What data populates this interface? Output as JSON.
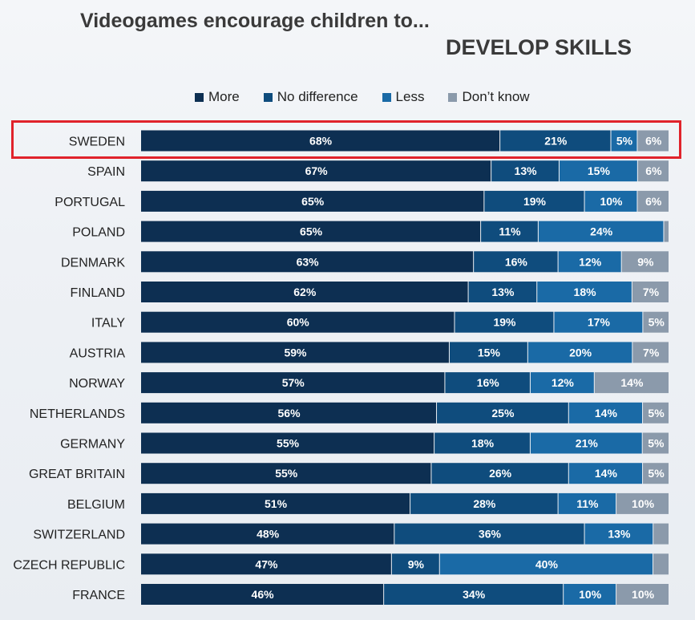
{
  "chart_data": {
    "type": "bar",
    "orientation": "horizontal",
    "stacked": true,
    "title": "Videogames encourage children to...",
    "subtitle": "DEVELOP SKILLS",
    "legend_position": "top",
    "grid": false,
    "categories": [
      "SWEDEN",
      "SPAIN",
      "PORTUGAL",
      "POLAND",
      "DENMARK",
      "FINLAND",
      "ITALY",
      "AUSTRIA",
      "NORWAY",
      "NETHERLANDS",
      "GERMANY",
      "GREAT BRITAIN",
      "BELGIUM",
      "SWITZERLAND",
      "CZECH REPUBLIC",
      "FRANCE"
    ],
    "series": [
      {
        "name": "More",
        "color": "#0d2f52",
        "values": [
          68,
          67,
          65,
          65,
          63,
          62,
          60,
          59,
          57,
          56,
          55,
          55,
          51,
          48,
          47,
          46
        ]
      },
      {
        "name": "No difference",
        "color": "#0f4c7d",
        "values": [
          21,
          13,
          19,
          11,
          16,
          13,
          19,
          15,
          16,
          25,
          18,
          26,
          28,
          36,
          9,
          34
        ]
      },
      {
        "name": "Less",
        "color": "#1a6aa6",
        "values": [
          5,
          15,
          10,
          24,
          12,
          18,
          17,
          20,
          12,
          14,
          21,
          14,
          11,
          13,
          40,
          10
        ]
      },
      {
        "name": "Don’t know",
        "color": "#8b9aab",
        "values": [
          6,
          6,
          6,
          1,
          9,
          7,
          5,
          7,
          14,
          5,
          5,
          5,
          10,
          3,
          3,
          10
        ]
      }
    ],
    "labels": [
      [
        "68%",
        "21%",
        "5%",
        "6%"
      ],
      [
        "67%",
        "13%",
        "15%",
        "6%"
      ],
      [
        "65%",
        "19%",
        "10%",
        "6%"
      ],
      [
        "65%",
        "11%",
        "24%",
        ""
      ],
      [
        "63%",
        "16%",
        "12%",
        "9%"
      ],
      [
        "62%",
        "13%",
        "18%",
        "7%"
      ],
      [
        "60%",
        "19%",
        "17%",
        "5%"
      ],
      [
        "59%",
        "15%",
        "20%",
        "7%"
      ],
      [
        "57%",
        "16%",
        "12%",
        "14%"
      ],
      [
        "56%",
        "25%",
        "14%",
        "5%"
      ],
      [
        "55%",
        "18%",
        "21%",
        "5%"
      ],
      [
        "55%",
        "26%",
        "14%",
        "5%"
      ],
      [
        "51%",
        "28%",
        "11%",
        "10%"
      ],
      [
        "48%",
        "36%",
        "13%",
        ""
      ],
      [
        "47%",
        "9%",
        "40%",
        ""
      ],
      [
        "46%",
        "34%",
        "10%",
        "10%"
      ]
    ],
    "highlighted_category": "SWEDEN",
    "highlight_color": "#e0232b"
  }
}
